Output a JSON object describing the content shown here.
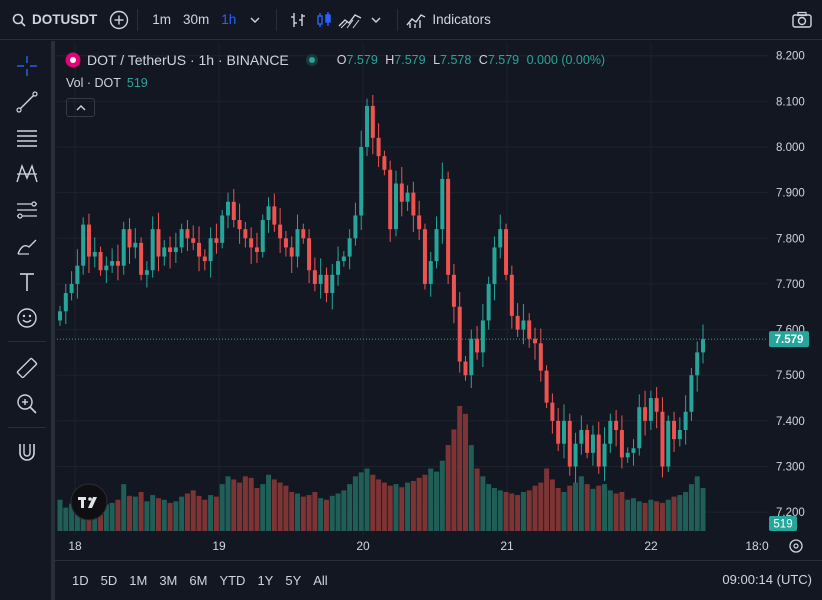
{
  "header": {
    "symbol": "DOTUSDT",
    "intervals": [
      "1m",
      "30m",
      "1h"
    ],
    "active_interval": "1h",
    "indicators_label": "Indicators"
  },
  "legend": {
    "title": "DOT / TetherUS · 1h · BINANCE",
    "o_label": "O",
    "o": "7.579",
    "h_label": "H",
    "h": "7.579",
    "l_label": "L",
    "l": "7.578",
    "c_label": "C",
    "c": "7.579",
    "change": "0.000 (0.00%)",
    "vol_label": "Vol · DOT",
    "vol": "519"
  },
  "price_axis": {
    "ticks": [
      "8.200",
      "8.100",
      "8.000",
      "7.900",
      "7.800",
      "7.700",
      "7.600",
      "7.500",
      "7.400",
      "7.300",
      "7.200"
    ],
    "current_price": "7.579",
    "current_volume": "519"
  },
  "time_axis": {
    "ticks": [
      "18",
      "19",
      "20",
      "21",
      "22",
      "18:0"
    ]
  },
  "bottom": {
    "ranges": [
      "1D",
      "5D",
      "1M",
      "3M",
      "6M",
      "YTD",
      "1Y",
      "5Y",
      "All"
    ],
    "clock": "09:00:14 (UTC)"
  },
  "colors": {
    "up": "#26a69a",
    "down": "#ef5350",
    "accent": "#2962ff",
    "bg": "#131722"
  },
  "chart_data": {
    "type": "candlestick",
    "ylim": [
      7.15,
      8.23
    ],
    "x_tick_labels": [
      "18",
      "19",
      "20",
      "21",
      "22",
      "18:0"
    ],
    "candles_close": [
      7.64,
      7.68,
      7.7,
      7.74,
      7.83,
      7.76,
      7.77,
      7.73,
      7.74,
      7.75,
      7.74,
      7.82,
      7.78,
      7.79,
      7.72,
      7.73,
      7.82,
      7.76,
      7.78,
      7.77,
      7.78,
      7.82,
      7.8,
      7.79,
      7.76,
      7.75,
      7.8,
      7.79,
      7.85,
      7.88,
      7.84,
      7.82,
      7.8,
      7.78,
      7.77,
      7.84,
      7.87,
      7.83,
      7.8,
      7.78,
      7.76,
      7.82,
      7.8,
      7.73,
      7.7,
      7.72,
      7.68,
      7.72,
      7.75,
      7.76,
      7.8,
      7.85,
      8.0,
      8.09,
      8.02,
      7.98,
      7.95,
      7.82,
      7.92,
      7.88,
      7.9,
      7.85,
      7.82,
      7.7,
      7.75,
      7.82,
      7.93,
      7.72,
      7.65,
      7.53,
      7.5,
      7.58,
      7.55,
      7.62,
      7.7,
      7.78,
      7.82,
      7.72,
      7.63,
      7.6,
      7.62,
      7.58,
      7.57,
      7.51,
      7.44,
      7.4,
      7.35,
      7.4,
      7.3,
      7.35,
      7.38,
      7.33,
      7.37,
      7.3,
      7.35,
      7.4,
      7.38,
      7.32,
      7.33,
      7.34,
      7.43,
      7.4,
      7.45,
      7.42,
      7.3,
      7.4,
      7.36,
      7.38,
      7.42,
      7.5,
      7.55,
      7.579
    ],
    "volume": [
      40,
      30,
      35,
      38,
      50,
      42,
      36,
      30,
      34,
      36,
      40,
      60,
      45,
      44,
      50,
      38,
      46,
      42,
      40,
      36,
      38,
      44,
      48,
      52,
      45,
      40,
      46,
      44,
      60,
      70,
      66,
      62,
      70,
      68,
      55,
      60,
      72,
      66,
      62,
      58,
      50,
      48,
      44,
      46,
      50,
      42,
      40,
      45,
      48,
      52,
      60,
      70,
      75,
      80,
      72,
      66,
      62,
      58,
      60,
      56,
      62,
      64,
      68,
      72,
      80,
      76,
      90,
      110,
      130,
      160,
      150,
      110,
      80,
      70,
      60,
      55,
      52,
      50,
      48,
      46,
      50,
      52,
      58,
      62,
      80,
      66,
      55,
      50,
      58,
      62,
      70,
      60,
      54,
      58,
      60,
      52,
      48,
      50,
      40,
      42,
      38,
      36,
      40,
      38,
      36,
      40,
      44,
      46,
      50,
      60,
      70,
      55
    ]
  }
}
